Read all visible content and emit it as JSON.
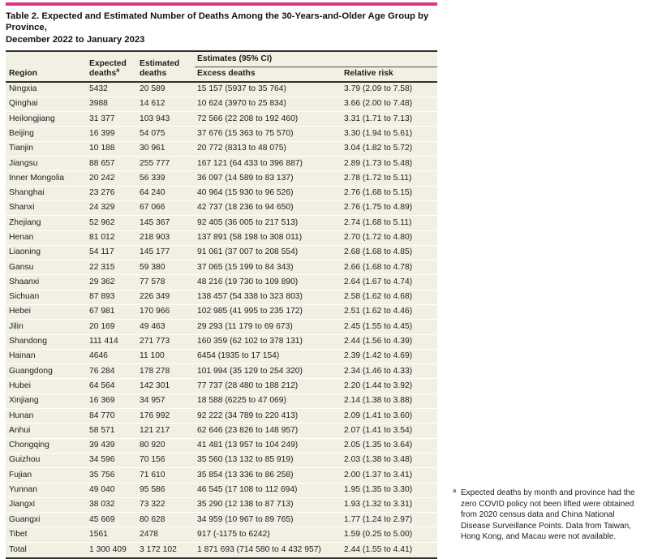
{
  "table": {
    "title_line1": "Table 2. Expected and Estimated Number of Deaths Among the 30-Years-and-Older Age Group by Province,",
    "title_line2": "December 2022 to January 2023",
    "header": {
      "region": "Region",
      "expected": "Expected deaths",
      "expected_sup": "a",
      "estimated": "Estimated deaths",
      "estimates_group": "Estimates (95% CI)",
      "excess": "Excess deaths",
      "relative_risk": "Relative risk"
    },
    "rows": [
      {
        "region": "Ningxia",
        "expected": "5432",
        "estimated": "20 589",
        "excess": "15 157 (5937 to 35 764)",
        "rr": "3.79 (2.09 to 7.58)"
      },
      {
        "region": "Qinghai",
        "expected": "3988",
        "estimated": "14 612",
        "excess": "10 624 (3970 to 25 834)",
        "rr": "3.66 (2.00 to 7.48)"
      },
      {
        "region": "Heilongjiang",
        "expected": "31 377",
        "estimated": "103 943",
        "excess": "72 566 (22 208 to 192 460)",
        "rr": "3.31 (1.71 to 7.13)"
      },
      {
        "region": "Beijing",
        "expected": "16 399",
        "estimated": "54 075",
        "excess": "37 676 (15 363 to 75 570)",
        "rr": "3.30 (1.94 to 5.61)"
      },
      {
        "region": "Tianjin",
        "expected": "10 188",
        "estimated": "30 961",
        "excess": "20 772 (8313 to 48 075)",
        "rr": "3.04 (1.82 to 5.72)"
      },
      {
        "region": "Jiangsu",
        "expected": "88 657",
        "estimated": "255 777",
        "excess": "167 121 (64 433 to 396 887)",
        "rr": "2.89 (1.73 to 5.48)"
      },
      {
        "region": "Inner Mongolia",
        "expected": "20 242",
        "estimated": "56 339",
        "excess": "36 097 (14 589 to 83 137)",
        "rr": "2.78 (1.72 to 5.11)"
      },
      {
        "region": "Shanghai",
        "expected": "23 276",
        "estimated": "64 240",
        "excess": "40 964 (15 930 to 96 526)",
        "rr": "2.76 (1.68 to 5.15)"
      },
      {
        "region": "Shanxi",
        "expected": "24 329",
        "estimated": "67 066",
        "excess": "42 737 (18 236 to 94 650)",
        "rr": "2.76 (1.75 to 4.89)"
      },
      {
        "region": "Zhejiang",
        "expected": "52 962",
        "estimated": "145 367",
        "excess": "92 405 (36 005 to 217 513)",
        "rr": "2.74 (1.68 to 5.11)"
      },
      {
        "region": "Henan",
        "expected": "81 012",
        "estimated": "218 903",
        "excess": "137 891 (58 198 to 308 011)",
        "rr": "2.70 (1.72 to 4.80)"
      },
      {
        "region": "Liaoning",
        "expected": "54 117",
        "estimated": "145 177",
        "excess": "91 061 (37 007 to 208 554)",
        "rr": "2.68 (1.68 to 4.85)"
      },
      {
        "region": "Gansu",
        "expected": "22 315",
        "estimated": "59 380",
        "excess": "37 065 (15 199 to 84 343)",
        "rr": "2.66 (1.68 to 4.78)"
      },
      {
        "region": "Shaanxi",
        "expected": "29 362",
        "estimated": "77 578",
        "excess": "48 216 (19 730 to 109 890)",
        "rr": "2.64 (1.67 to 4.74)"
      },
      {
        "region": "Sichuan",
        "expected": "87 893",
        "estimated": "226 349",
        "excess": "138 457 (54 338 to 323 803)",
        "rr": "2.58 (1.62 to 4.68)"
      },
      {
        "region": "Hebei",
        "expected": "67 981",
        "estimated": "170 966",
        "excess": "102 985 (41 995 to 235 172)",
        "rr": "2.51 (1.62 to 4.46)"
      },
      {
        "region": "Jilin",
        "expected": "20 169",
        "estimated": "49 463",
        "excess": "29 293 (11 179 to 69 673)",
        "rr": "2.45 (1.55 to 4.45)"
      },
      {
        "region": "Shandong",
        "expected": "111 414",
        "estimated": "271 773",
        "excess": "160 359 (62 102 to 378 131)",
        "rr": "2.44 (1.56 to 4.39)"
      },
      {
        "region": "Hainan",
        "expected": "4646",
        "estimated": "11 100",
        "excess": "6454 (1935 to 17 154)",
        "rr": "2.39 (1.42 to 4.69)"
      },
      {
        "region": "Guangdong",
        "expected": "76 284",
        "estimated": "178 278",
        "excess": "101 994 (35 129 to 254 320)",
        "rr": "2.34 (1.46 to 4.33)"
      },
      {
        "region": "Hubei",
        "expected": "64 564",
        "estimated": "142 301",
        "excess": "77 737 (28 480 to 188 212)",
        "rr": "2.20 (1.44 to 3.92)"
      },
      {
        "region": "Xinjiang",
        "expected": "16 369",
        "estimated": "34 957",
        "excess": "18 588 (6225 to 47 069)",
        "rr": "2.14 (1.38 to 3.88)"
      },
      {
        "region": "Hunan",
        "expected": "84 770",
        "estimated": "176 992",
        "excess": "92 222 (34 789 to 220 413)",
        "rr": "2.09 (1.41 to 3.60)"
      },
      {
        "region": "Anhui",
        "expected": "58 571",
        "estimated": "121 217",
        "excess": "62 646 (23 826 to 148 957)",
        "rr": "2.07 (1.41 to 3.54)"
      },
      {
        "region": "Chongqing",
        "expected": "39 439",
        "estimated": "80 920",
        "excess": "41 481 (13 957 to 104 249)",
        "rr": "2.05 (1.35 to 3.64)"
      },
      {
        "region": "Guizhou",
        "expected": "34 596",
        "estimated": "70 156",
        "excess": "35 560 (13 132 to 85 919)",
        "rr": "2.03 (1.38 to 3.48)"
      },
      {
        "region": "Fujian",
        "expected": "35 756",
        "estimated": "71 610",
        "excess": "35 854 (13 336 to 86 258)",
        "rr": "2.00 (1.37 to 3.41)"
      },
      {
        "region": "Yunnan",
        "expected": "49 040",
        "estimated": "95 586",
        "excess": "46 545 (17 108 to 112 694)",
        "rr": "1.95 (1.35 to 3.30)"
      },
      {
        "region": "Jiangxi",
        "expected": "38 032",
        "estimated": "73 322",
        "excess": "35 290 (12 138 to 87 713)",
        "rr": "1.93 (1.32 to 3.31)"
      },
      {
        "region": "Guangxi",
        "expected": "45 669",
        "estimated": "80 628",
        "excess": "34 959 (10 967 to 89 765)",
        "rr": "1.77 (1.24 to 2.97)"
      },
      {
        "region": "Tibet",
        "expected": "1561",
        "estimated": "2478",
        "excess": "917 (-1175 to 6242)",
        "rr": "1.59 (0.25 to 5.00)"
      },
      {
        "region": "Total",
        "expected": "1 300 409",
        "estimated": "3 172 102",
        "excess": "1 871 693 (714 580 to 4 432 957)",
        "rr": "2.44 (1.55 to 4.41)"
      }
    ]
  },
  "footnote": {
    "marker": "a",
    "text": "Expected deaths by month and province had the zero COVID policy not been lifted were obtained from 2020 census data and China National Disease Surveillance Points. Data from Taiwan, Hong Kong, and Macau were not available."
  },
  "colors": {
    "accent_rule": "#e0338a",
    "row_background": "#f2f0e3",
    "dark_rule": "#2f2f2f"
  }
}
